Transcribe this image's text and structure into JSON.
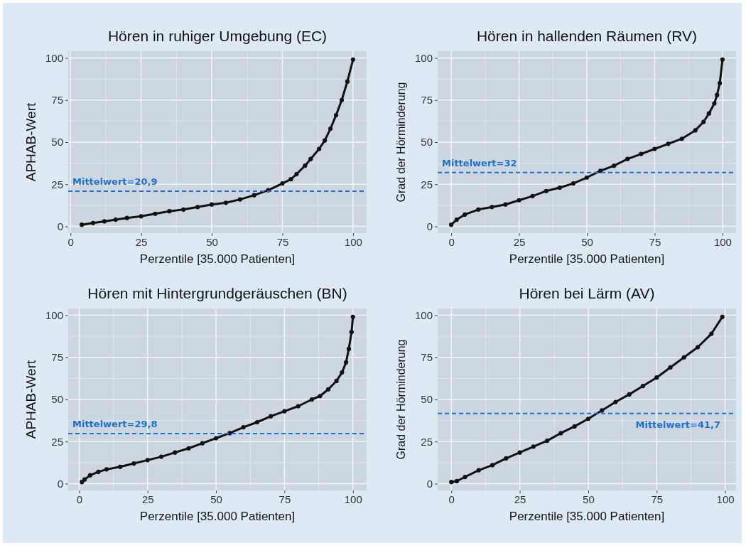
{
  "chart_data": [
    {
      "type": "line",
      "title": "Hören in ruhiger Umgebung (EC)",
      "xlabel": "Perzentile [35.000 Patienten]",
      "ylabel": "APHAB-Wert",
      "xlim": [
        -0.8,
        104.8
      ],
      "ylim": [
        -4,
        104
      ],
      "xticks": [
        0,
        25,
        50,
        75,
        100
      ],
      "yticks": [
        0,
        25,
        50,
        75,
        100
      ],
      "grid": true,
      "marker": "circle",
      "line_style": "solid",
      "ref_lines": [
        {
          "axis": "y",
          "value": 20.9,
          "label": "Mittelwert=20,9",
          "color": "#1f6fd0",
          "line_style": "dashed"
        }
      ],
      "series": [
        {
          "color": "#111111",
          "x": [
            4,
            8,
            12,
            16,
            20,
            25,
            30,
            35,
            40,
            45,
            50,
            55,
            60,
            65,
            70,
            75,
            78,
            80,
            83,
            85,
            88,
            90,
            92,
            94,
            96,
            98,
            100
          ],
          "values": [
            1,
            2,
            3,
            4,
            5,
            6,
            7.5,
            9,
            10,
            11.5,
            13,
            14,
            16,
            18.5,
            21.5,
            25.5,
            28,
            31,
            36,
            40,
            46,
            51,
            58,
            66,
            75,
            86,
            99
          ]
        }
      ]
    },
    {
      "type": "line",
      "title": "Hören in hallenden Räumen (RV)",
      "xlabel": "Perzentile [35.000 Patienten]",
      "ylabel": "Grad der Hörminderung",
      "xlim": [
        -5,
        105
      ],
      "ylim": [
        -4,
        104
      ],
      "xticks": [
        0,
        25,
        50,
        75,
        100
      ],
      "yticks": [
        0,
        25,
        50,
        75,
        100
      ],
      "grid": true,
      "marker": "circle",
      "line_style": "solid",
      "ref_lines": [
        {
          "axis": "y",
          "value": 32,
          "label": "Mittelwert=32",
          "color": "#1f6fd0",
          "line_style": "dashed"
        }
      ],
      "series": [
        {
          "color": "#111111",
          "x": [
            0,
            2,
            5,
            10,
            15,
            20,
            25,
            30,
            35,
            40,
            45,
            50,
            55,
            60,
            65,
            70,
            75,
            80,
            85,
            90,
            93,
            95,
            97,
            98,
            99,
            100
          ],
          "values": [
            1,
            4,
            7,
            10,
            11.5,
            13,
            15.5,
            18,
            21,
            23,
            25.5,
            29,
            33,
            36,
            40,
            43,
            46,
            49,
            52,
            57,
            62,
            67,
            73,
            78,
            85,
            99
          ]
        }
      ]
    },
    {
      "type": "line",
      "title": "Hören mit Hintergrundgeräuschen (BN)",
      "xlabel": "Perzentile [35.000 Patienten]",
      "ylabel": "APHAB-Wert",
      "xlim": [
        -4,
        105
      ],
      "ylim": [
        -4,
        104
      ],
      "xticks": [
        0,
        25,
        50,
        75,
        100
      ],
      "yticks": [
        0,
        25,
        50,
        75,
        100
      ],
      "grid": true,
      "marker": "circle",
      "line_style": "solid",
      "ref_lines": [
        {
          "axis": "y",
          "value": 29.8,
          "label": "Mittelwert=29,8",
          "color": "#1f6fd0",
          "line_style": "dashed"
        }
      ],
      "series": [
        {
          "color": "#111111",
          "x": [
            1,
            2,
            4,
            7,
            10,
            15,
            20,
            25,
            30,
            35,
            40,
            45,
            50,
            55,
            60,
            65,
            70,
            75,
            80,
            85,
            88,
            91,
            94,
            96,
            97.5,
            98.5,
            99.5,
            100
          ],
          "values": [
            1,
            2.5,
            5,
            7,
            8.5,
            10,
            12,
            14,
            16,
            18.5,
            21,
            24,
            27,
            30,
            33.5,
            36.5,
            40,
            43,
            46,
            50,
            52,
            56,
            61,
            66,
            72,
            80,
            90,
            99
          ]
        }
      ]
    },
    {
      "type": "line",
      "title": "Hören bei Lärm (AV)",
      "xlabel": "Perzentile [35.000 Patienten]",
      "ylabel": "Grad der Hörminderung",
      "xlim": [
        -5,
        104
      ],
      "ylim": [
        -4,
        104
      ],
      "xticks": [
        0,
        25,
        50,
        75,
        100
      ],
      "yticks": [
        0,
        25,
        50,
        75,
        100
      ],
      "grid": true,
      "marker": "circle",
      "line_style": "solid",
      "ref_lines": [
        {
          "axis": "y",
          "value": 41.7,
          "label": "Mittelwert=41,7",
          "color": "#1f6fd0",
          "line_style": "dashed"
        }
      ],
      "series": [
        {
          "color": "#111111",
          "x": [
            0,
            2,
            5,
            10,
            15,
            20,
            25,
            30,
            35,
            40,
            45,
            50,
            55,
            60,
            65,
            70,
            75,
            80,
            85,
            90,
            95,
            99
          ],
          "values": [
            1,
            1.5,
            4,
            8,
            11,
            15,
            18.5,
            22,
            25.5,
            30,
            34,
            38.5,
            43.5,
            48.5,
            53,
            58,
            63,
            69,
            75,
            81,
            89,
            99
          ]
        }
      ]
    }
  ]
}
